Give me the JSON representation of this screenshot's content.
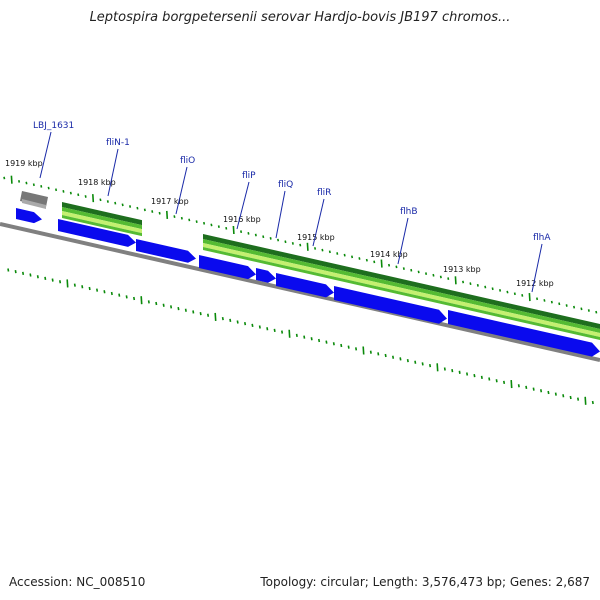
{
  "title": "Leptospira borgpetersenii serovar Hardjo-bovis JB197 chromos...",
  "footer": {
    "accession": "Accession: NC_008510",
    "stats": "Topology: circular; Length: 3,576,473 bp; Genes: 2,687"
  },
  "colors": {
    "backbone": "#808080",
    "cds": "#0a0aee",
    "pseudo_gene": "#777777",
    "tick": "#0a8a0a",
    "gc_dark": "#1e6e1e",
    "gc_mid": "#55bb33",
    "gc_light": "#c4f070",
    "label": "#1a2aa8"
  },
  "position_labels": [
    "1919 kbp",
    "1918 kbp",
    "1917 kbp",
    "1916 kbp",
    "1915 kbp",
    "1914 kbp",
    "1913 kbp",
    "1912 kbp"
  ],
  "gene_labels": [
    "LBJ_1631",
    "fliN-1",
    "fliO",
    "fliP",
    "fliQ",
    "fliR",
    "flhB",
    "flhA"
  ]
}
